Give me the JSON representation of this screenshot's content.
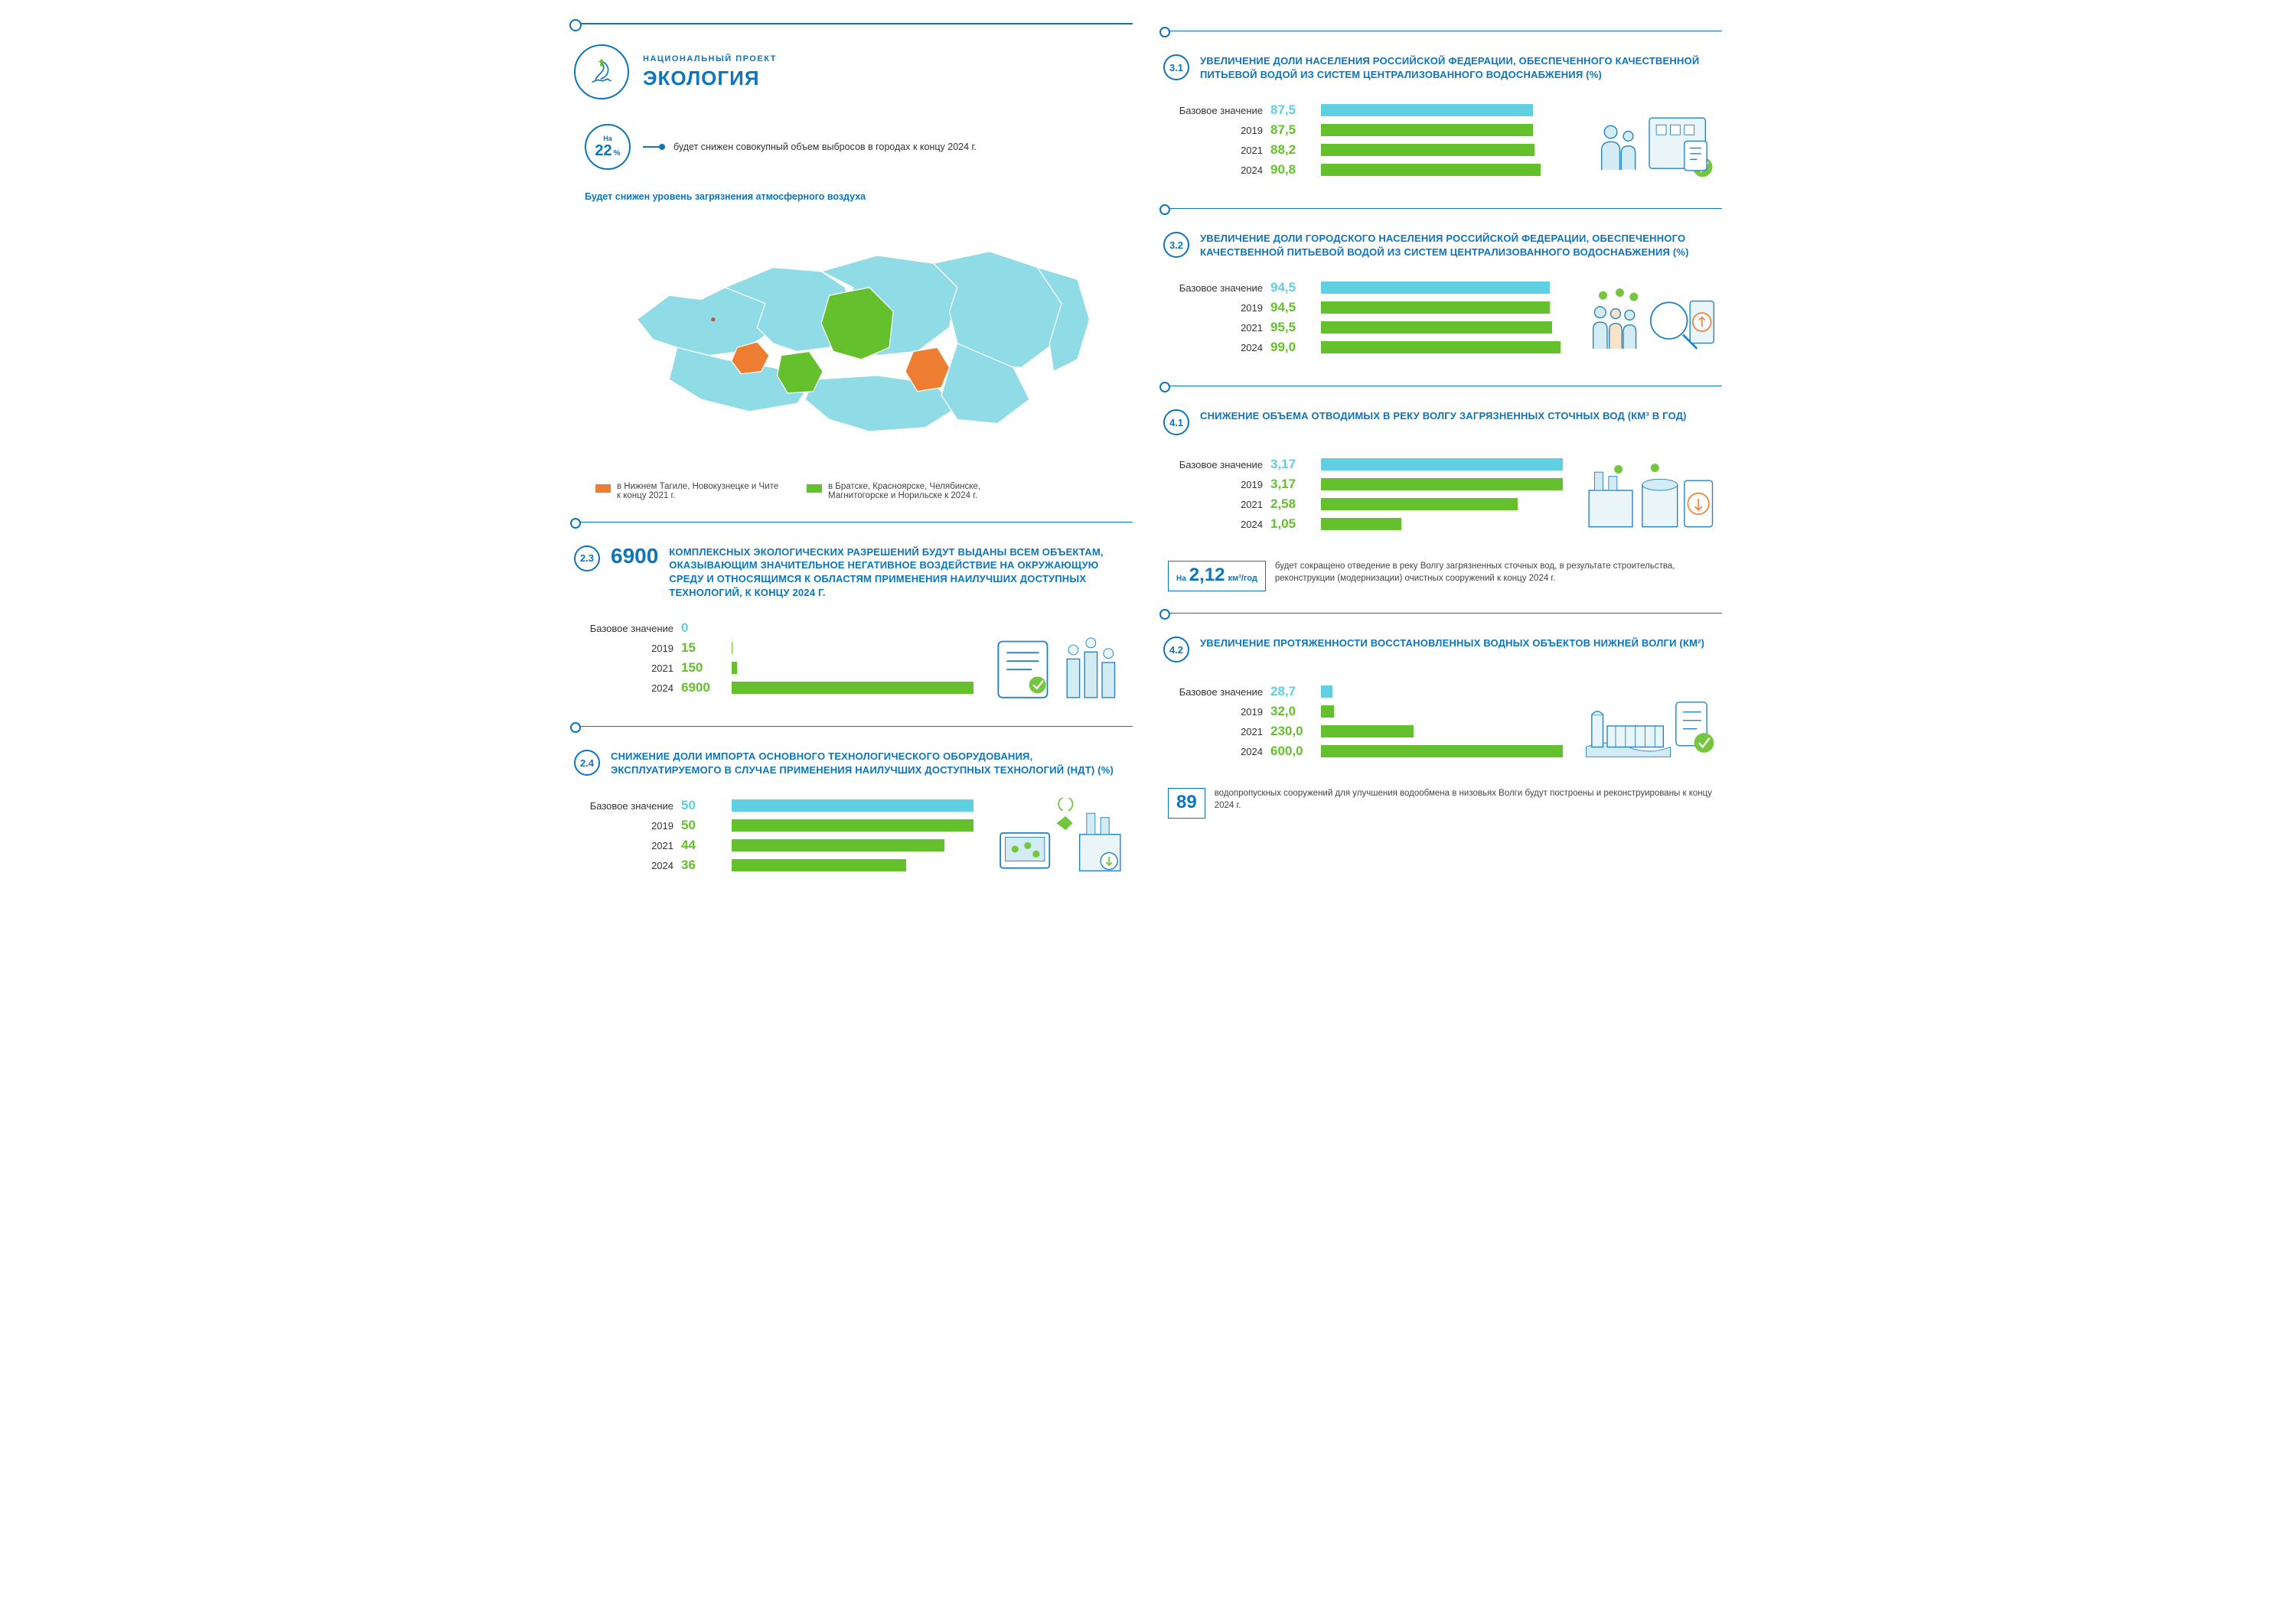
{
  "colors": {
    "primary": "#0d75bc",
    "green": "#65c02d",
    "orange": "#ed7d31",
    "cyan": "#5fcfe2",
    "map_base": "#8fdce6",
    "map_stroke": "#ffffff",
    "text": "#333333",
    "bg": "#ffffff"
  },
  "header": {
    "subtitle": "НАЦИОНАЛЬНЫЙ ПРОЕКТ",
    "title": "ЭКОЛОГИЯ"
  },
  "emissions_stat": {
    "prefix": "На",
    "value": "22",
    "suffix": "%",
    "text": "будет снижен совокупный объем выбросов в городах к концу 2024 г."
  },
  "air_subhead": "Будет снижен уровень загрязнения атмосферного воздуха",
  "map_legend": [
    {
      "color": "#ed7d31",
      "text": "в Нижнем Тагиле, Новокузнецке и Чите к концу 2021 г."
    },
    {
      "color": "#65c02d",
      "text": "в Братске, Красноярске, Челябинске, Магнитогорске и Норильске к 2024 г."
    }
  ],
  "sect23": {
    "num": "2.3",
    "big": "6900",
    "title": "КОМПЛЕКСНЫХ ЭКОЛОГИЧЕСКИХ РАЗРЕШЕНИЙ БУДУТ ВЫДАНЫ ВСЕМ ОБЪЕКТАМ, ОКАЗЫВАЮЩИМ ЗНАЧИТЕЛЬНОЕ НЕГАТИВНОЕ ВОЗДЕЙСТВИЕ НА ОКРУЖАЮЩУЮ СРЕДУ И ОТНОСЯЩИМСЯ К ОБЛАСТЯМ ПРИМЕНЕНИЯ НАИЛУЧШИХ ДОСТУПНЫХ ТЕХНОЛОГИЙ, К КОНЦУ 2024 Г.",
    "max": 6900,
    "rows": [
      {
        "label": "Базовое значение",
        "value": 0,
        "display": "0",
        "color": "#5fcfe2"
      },
      {
        "label": "2019",
        "value": 15,
        "display": "15",
        "color": "#65c02d"
      },
      {
        "label": "2021",
        "value": 150,
        "display": "150",
        "color": "#65c02d"
      },
      {
        "label": "2024",
        "value": 6900,
        "display": "6900",
        "color": "#65c02d"
      }
    ]
  },
  "sect24": {
    "num": "2.4",
    "title": "СНИЖЕНИЕ ДОЛИ ИМПОРТА ОСНОВНОГО ТЕХНОЛОГИЧЕСКОГО ОБОРУДОВАНИЯ, ЭКСПЛУАТИРУЕМОГО В СЛУЧАЕ ПРИМЕНЕНИЯ НАИЛУЧШИХ ДОСТУПНЫХ ТЕХНОЛОГИЙ (НДТ) (%)",
    "max": 50,
    "rows": [
      {
        "label": "Базовое значение",
        "value": 50,
        "display": "50",
        "color": "#5fcfe2"
      },
      {
        "label": "2019",
        "value": 50,
        "display": "50",
        "color": "#65c02d"
      },
      {
        "label": "2021",
        "value": 44,
        "display": "44",
        "color": "#65c02d"
      },
      {
        "label": "2024",
        "value": 36,
        "display": "36",
        "color": "#65c02d"
      }
    ]
  },
  "sect31": {
    "num": "3.1",
    "title": "УВЕЛИЧЕНИЕ ДОЛИ НАСЕЛЕНИЯ РОССИЙСКОЙ ФЕДЕРАЦИИ, ОБЕСПЕЧЕННОГО КАЧЕСТВЕННОЙ ПИТЬЕВОЙ ВОДОЙ ИЗ СИСТЕМ ЦЕНТРАЛИЗОВАННОГО ВОДОСНАБЖЕНИЯ (%)",
    "max": 100,
    "rows": [
      {
        "label": "Базовое значение",
        "value": 87.5,
        "display": "87,5",
        "color": "#5fcfe2"
      },
      {
        "label": "2019",
        "value": 87.5,
        "display": "87,5",
        "color": "#65c02d"
      },
      {
        "label": "2021",
        "value": 88.2,
        "display": "88,2",
        "color": "#65c02d"
      },
      {
        "label": "2024",
        "value": 90.8,
        "display": "90,8",
        "color": "#65c02d"
      }
    ]
  },
  "sect32": {
    "num": "3.2",
    "title": "УВЕЛИЧЕНИЕ ДОЛИ ГОРОДСКОГО НАСЕЛЕНИЯ РОССИЙСКОЙ ФЕДЕРАЦИИ, ОБЕСПЕЧЕННОГО КАЧЕСТВЕННОЙ ПИТЬЕВОЙ ВОДОЙ ИЗ СИСТЕМ ЦЕНТРАЛИЗОВАННОГО ВОДОСНАБЖЕНИЯ (%)",
    "max": 100,
    "rows": [
      {
        "label": "Базовое значение",
        "value": 94.5,
        "display": "94,5",
        "color": "#5fcfe2"
      },
      {
        "label": "2019",
        "value": 94.5,
        "display": "94,5",
        "color": "#65c02d"
      },
      {
        "label": "2021",
        "value": 95.5,
        "display": "95,5",
        "color": "#65c02d"
      },
      {
        "label": "2024",
        "value": 99.0,
        "display": "99,0",
        "color": "#65c02d"
      }
    ]
  },
  "sect41": {
    "num": "4.1",
    "title": "СНИЖЕНИЕ ОБЪЕМА ОТВОДИМЫХ В РЕКУ ВОЛГУ ЗАГРЯЗНЕННЫХ СТОЧНЫХ ВОД (КМ³ В ГОД)",
    "max": 3.17,
    "rows": [
      {
        "label": "Базовое значение",
        "value": 3.17,
        "display": "3,17",
        "color": "#5fcfe2"
      },
      {
        "label": "2019",
        "value": 3.17,
        "display": "3,17",
        "color": "#65c02d"
      },
      {
        "label": "2021",
        "value": 2.58,
        "display": "2,58",
        "color": "#65c02d"
      },
      {
        "label": "2024",
        "value": 1.05,
        "display": "1,05",
        "color": "#65c02d"
      }
    ],
    "callout": {
      "prefix": "На",
      "value": "2,12",
      "unit": "км³/год",
      "text": "будет сокращено отведение в реку Волгу загрязненных сточных вод, в результате строительства, реконструкции (модернизации) очистных сооружений к концу 2024 г."
    }
  },
  "sect42": {
    "num": "4.2",
    "title": "УВЕЛИЧЕНИЕ ПРОТЯЖЕННОСТИ ВОССТАНОВЛЕННЫХ ВОДНЫХ ОБЪЕКТОВ НИЖНЕЙ ВОЛГИ (КМ²)",
    "max": 600,
    "rows": [
      {
        "label": "Базовое значение",
        "value": 28.7,
        "display": "28,7",
        "color": "#5fcfe2"
      },
      {
        "label": "2019",
        "value": 32.0,
        "display": "32,0",
        "color": "#65c02d"
      },
      {
        "label": "2021",
        "value": 230.0,
        "display": "230,0",
        "color": "#65c02d"
      },
      {
        "label": "2024",
        "value": 600.0,
        "display": "600,0",
        "color": "#65c02d"
      }
    ],
    "callout": {
      "value": "89",
      "text": "водопропускных сооружений для улучшения водообмена в низовьях Волги будут построены и реконструированы к концу 2024 г."
    }
  }
}
